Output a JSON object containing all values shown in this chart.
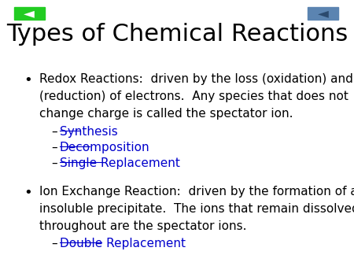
{
  "title": "Types of Chemical Reactions",
  "title_fontsize": 22,
  "background_color": "#ffffff",
  "bullet1_text_line1": "Redox Reactions:  driven by the loss (oxidation) and gain",
  "bullet1_text_line2": "(reduction) of electrons.  Any species that does not",
  "bullet1_text_line3": "change charge is called the spectator ion.",
  "bullet1_links": [
    "Synthesis",
    "Decomposition",
    "Single Replacement"
  ],
  "bullet2_text_line1": "Ion Exchange Reaction:  driven by the formation of an",
  "bullet2_text_line2": "insoluble precipitate.  The ions that remain dissolved",
  "bullet2_text_line3": "throughout are the spectator ions.",
  "bullet2_links": [
    "Double Replacement"
  ],
  "link_color": "#0000CC",
  "text_color": "#000000",
  "body_fontsize": 11,
  "green_arrow_color": "#22cc22",
  "blue_arrow_color": "#5b84b1",
  "dash_color": "#000000"
}
